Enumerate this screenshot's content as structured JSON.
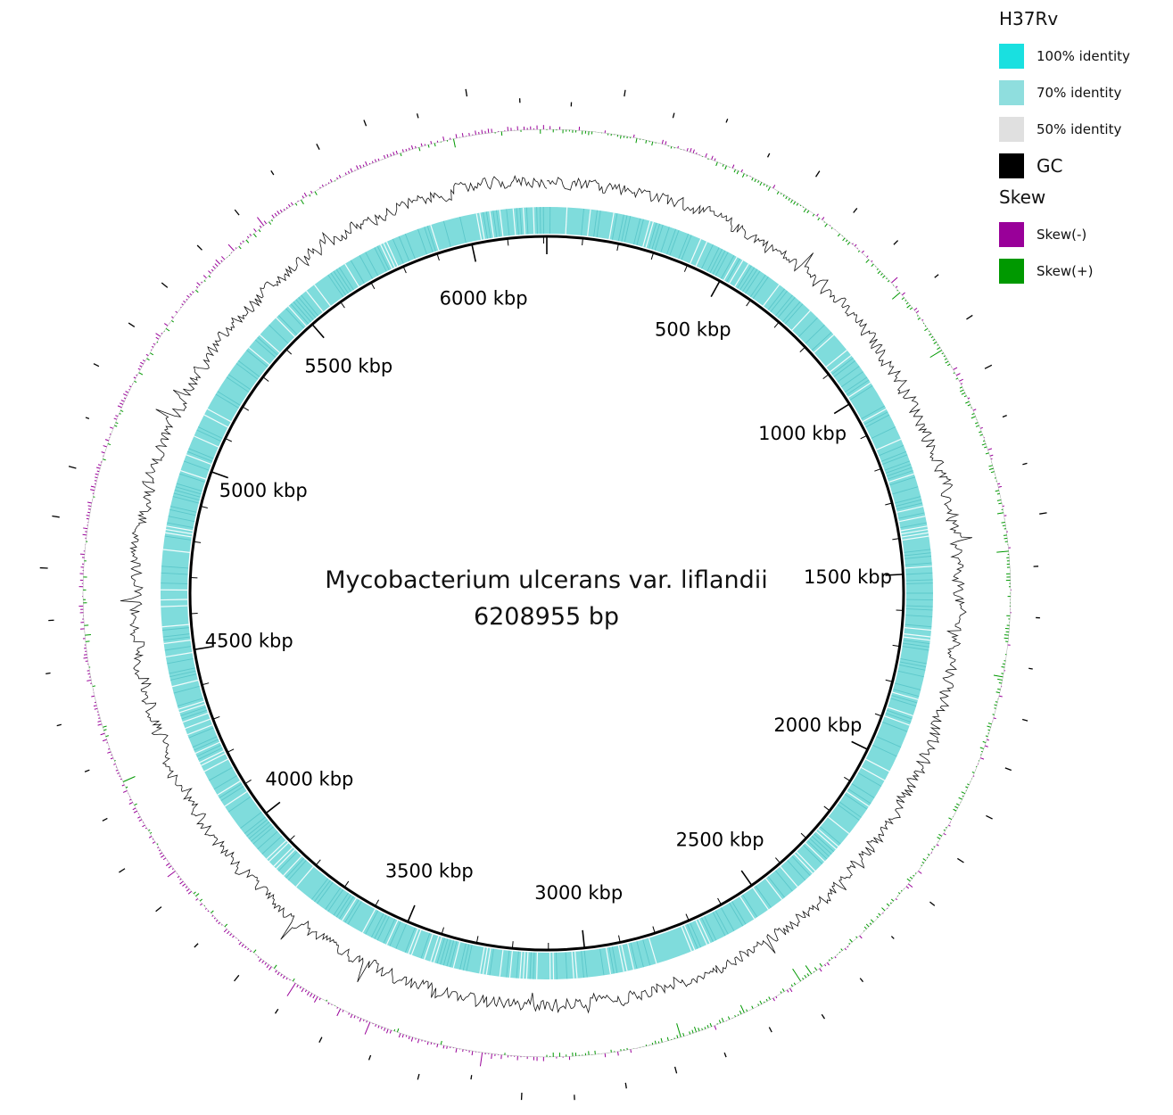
{
  "title": {
    "line1": "Mycobacterium ulcerans var. liflandii",
    "line2": "6208955 bp"
  },
  "genome_length_bp": 6208955,
  "position_labels": [
    "500 kbp",
    "1000 kbp",
    "1500 kbp",
    "2000 kbp",
    "2500 kbp",
    "3000 kbp",
    "3500 kbp",
    "4000 kbp",
    "4500 kbp",
    "5000 kbp",
    "5500 kbp",
    "6000 kbp"
  ],
  "legend": {
    "reference_title": "H37Rv",
    "identity": [
      {
        "label": "100% identity",
        "color": "#19e0e0"
      },
      {
        "label": "70% identity",
        "color": "#8fdede"
      },
      {
        "label": "50% identity",
        "color": "#e0e0e0"
      }
    ],
    "gc": {
      "label": "GC",
      "color": "#000000"
    },
    "skew_title": "Skew",
    "skew": [
      {
        "label": "Skew(-)",
        "color": "#990099"
      },
      {
        "label": "Skew(+)",
        "color": "#009900"
      }
    ]
  },
  "colors": {
    "backbone": "#000000",
    "identity_ring": "#7fdcdc",
    "identity_dark": "#3fb6bc",
    "gc_line": "#111111",
    "skew_neg": "#990099",
    "skew_pos": "#009900"
  }
}
